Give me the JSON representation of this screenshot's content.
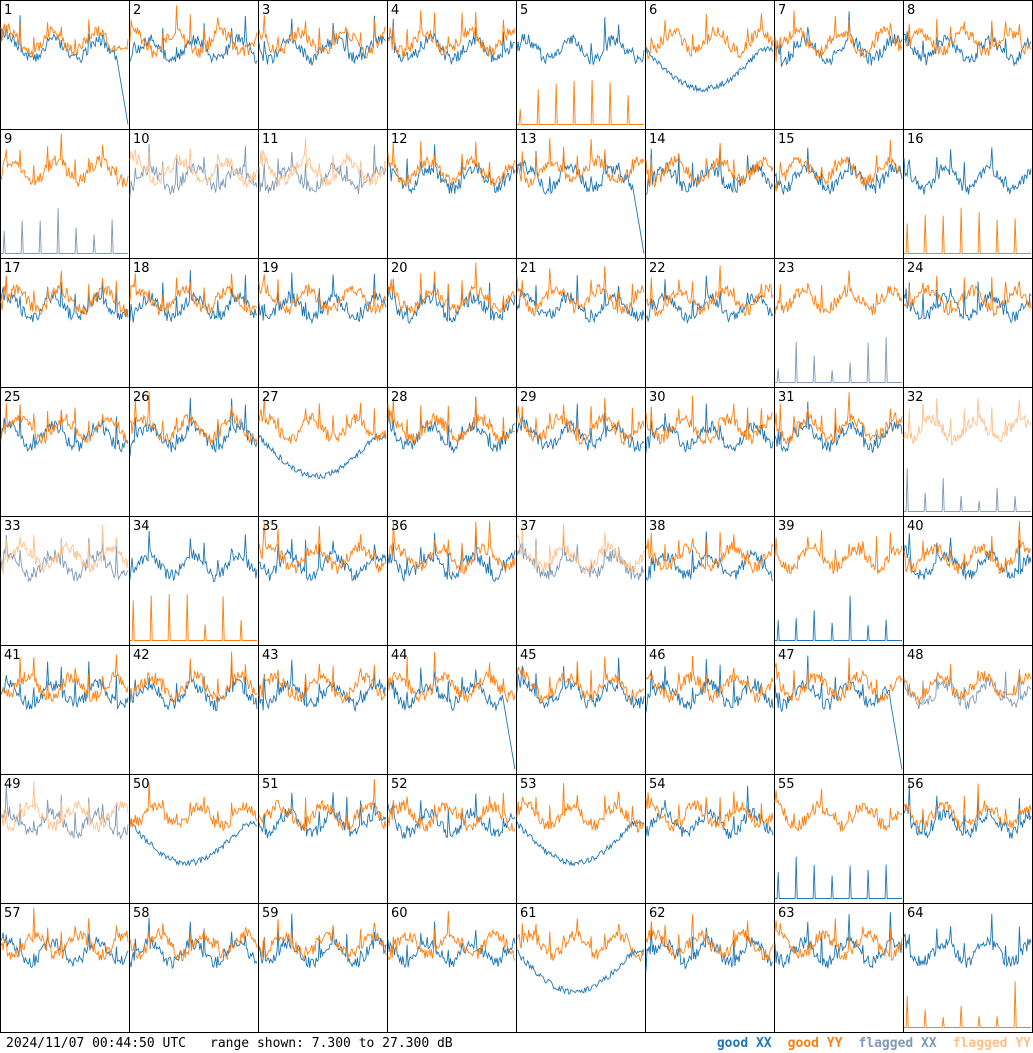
{
  "chart_data": {
    "type": "line",
    "grid": {
      "rows": 8,
      "cols": 8
    },
    "panel_labels": [
      "1",
      "2",
      "3",
      "4",
      "5",
      "6",
      "7",
      "8",
      "9",
      "10",
      "11",
      "12",
      "13",
      "14",
      "15",
      "16",
      "17",
      "18",
      "19",
      "20",
      "21",
      "22",
      "23",
      "24",
      "25",
      "26",
      "27",
      "28",
      "29",
      "30",
      "31",
      "32",
      "33",
      "34",
      "35",
      "36",
      "37",
      "38",
      "39",
      "40",
      "41",
      "42",
      "43",
      "44",
      "45",
      "46",
      "47",
      "48",
      "49",
      "50",
      "51",
      "52",
      "53",
      "54",
      "55",
      "56",
      "57",
      "58",
      "59",
      "60",
      "61",
      "62",
      "63",
      "64"
    ],
    "y_range_db": [
      7.3,
      27.3
    ],
    "status": {
      "good_xx": [
        1,
        2,
        3,
        4,
        5,
        6,
        7,
        8,
        12,
        13,
        14,
        15,
        16,
        17,
        18,
        19,
        20,
        21,
        22,
        24,
        25,
        26,
        27,
        28,
        29,
        30,
        31,
        34,
        35,
        36,
        38,
        39,
        40,
        41,
        42,
        43,
        44,
        45,
        46,
        47,
        50,
        51,
        52,
        53,
        54,
        55,
        56,
        57,
        58,
        59,
        60,
        61,
        62,
        63,
        64
      ],
      "good_yy": [
        1,
        2,
        3,
        4,
        5,
        6,
        7,
        8,
        9,
        12,
        13,
        14,
        15,
        16,
        17,
        18,
        19,
        20,
        21,
        22,
        23,
        24,
        25,
        26,
        27,
        28,
        29,
        30,
        31,
        34,
        35,
        36,
        38,
        39,
        40,
        41,
        42,
        43,
        44,
        45,
        46,
        47,
        48,
        50,
        51,
        52,
        53,
        54,
        55,
        56,
        57,
        58,
        59,
        60,
        61,
        62,
        63,
        64
      ],
      "flagged_xx": [
        9,
        10,
        11,
        23,
        32,
        33,
        37,
        48,
        49
      ],
      "flagged_yy": [
        10,
        11,
        32,
        33,
        37,
        49
      ]
    },
    "legend": [
      {
        "label": "good XX",
        "color": "#1f77b4"
      },
      {
        "label": "good YY",
        "color": "#ff7f0e"
      },
      {
        "label": "flagged XX",
        "color": "#7f9ab4"
      },
      {
        "label": "flagged YY",
        "color": "#ffc08a"
      }
    ],
    "colors": {
      "good_xx": "#1f77b4",
      "good_yy": "#ff7f0e",
      "flagged_xx": "#7f9ab4",
      "flagged_yy": "#ffc08a"
    }
  },
  "footer": {
    "timestamp": "2024/11/07 00:44:50 UTC",
    "range": "range shown: 7.300 to 27.300 dB"
  }
}
